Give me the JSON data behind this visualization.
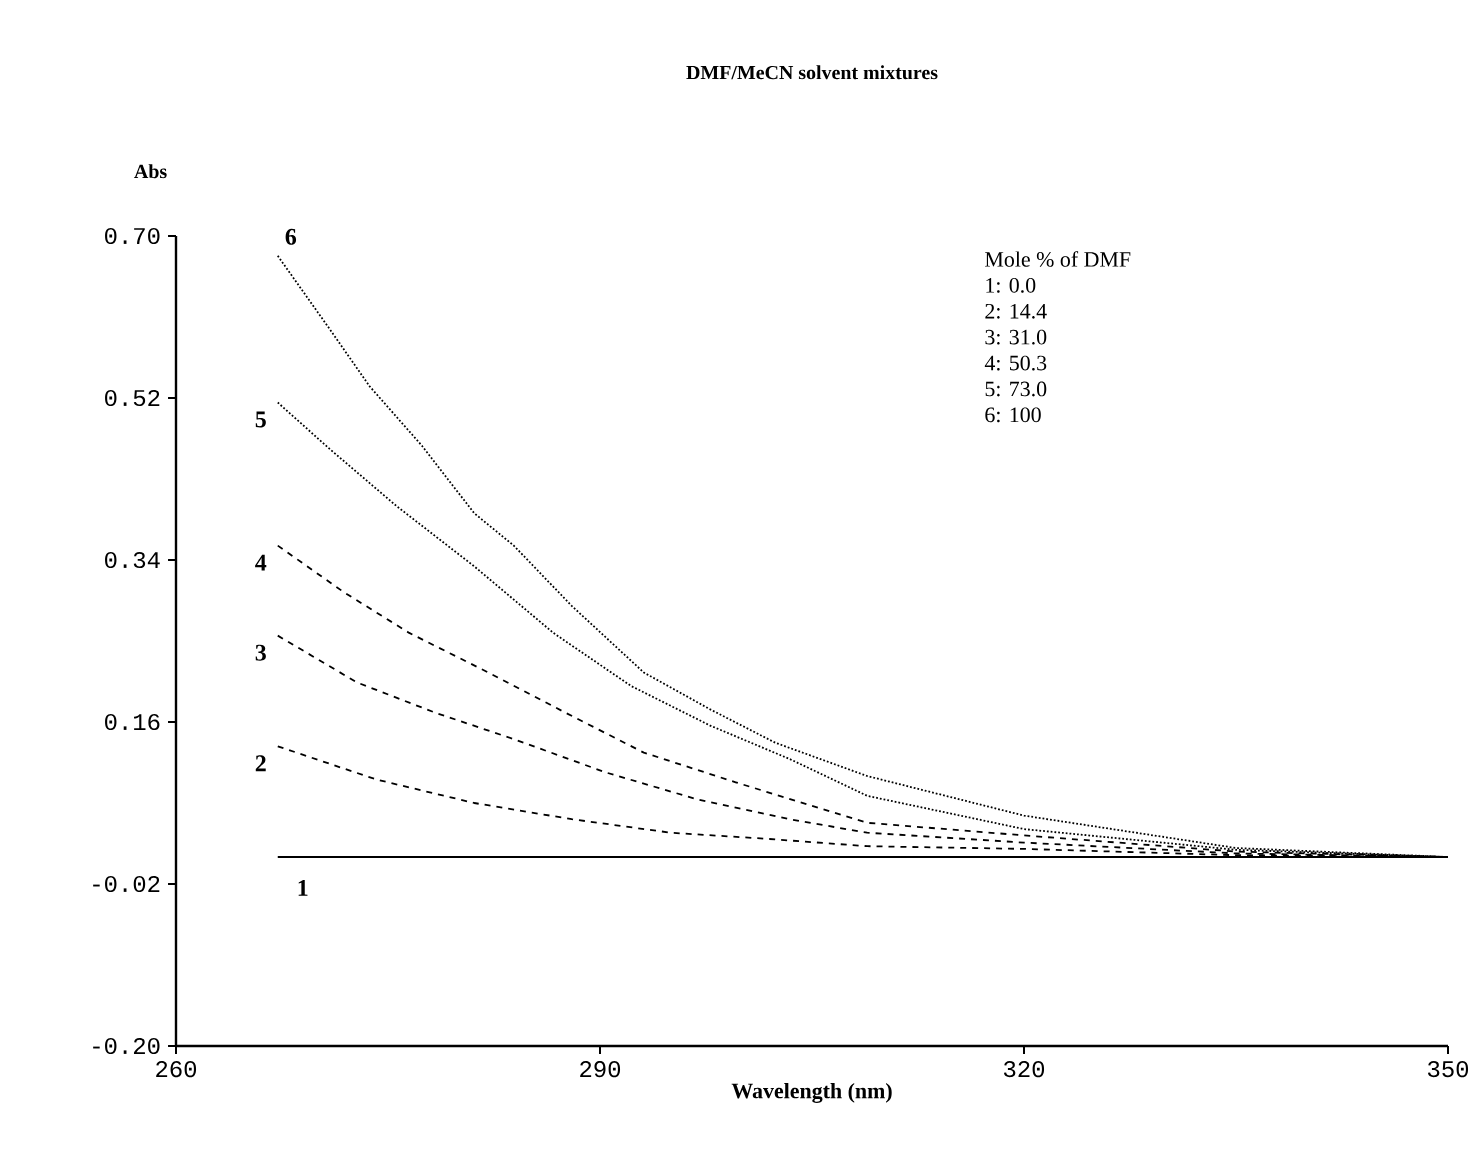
{
  "chart_data": {
    "type": "line",
    "title": "DMF/MeCN solvent mixtures",
    "xlabel": "Wavelength (nm)",
    "ylabel": "Abs",
    "xlim": [
      260,
      350
    ],
    "xticks": [
      260,
      290,
      320,
      350
    ],
    "ylim": [
      -0.2,
      0.7
    ],
    "yticks": [
      {
        "value": -0.2,
        "label": "-0.20"
      },
      {
        "value": -0.02,
        "label": "-0.02"
      },
      {
        "value": 0.16,
        "label": "0.16"
      },
      {
        "value": 0.34,
        "label": "0.34"
      },
      {
        "value": 0.52,
        "label": "0.52"
      },
      {
        "value": 0.7,
        "label": "0.70"
      }
    ],
    "grid": false,
    "annotations": [
      "Mole % of DMF",
      "1: 0.0",
      "2: 14.4",
      "3: 31.0",
      "4: 50.3",
      "5: 73.0",
      "6: 100"
    ],
    "series": [
      {
        "name": "1",
        "color": "#000000",
        "line_style": "solid",
        "x": [
          267.2,
          290,
          320,
          350
        ],
        "values": [
          0.01,
          0.01,
          0.01,
          0.01
        ]
      },
      {
        "name": "2",
        "color": "#000000",
        "line_style": "dashed",
        "x": [
          267.2,
          274.2,
          281.1,
          288.0,
          295.0,
          302.0,
          308.9,
          320,
          335,
          350
        ],
        "values": [
          0.133,
          0.096,
          0.07,
          0.052,
          0.037,
          0.03,
          0.022,
          0.019,
          0.012,
          0.01
        ]
      },
      {
        "name": "3",
        "color": "#000000",
        "line_style": "dashed",
        "x": [
          267.2,
          272.8,
          278.4,
          283.9,
          290.4,
          296.9,
          303.4,
          308.9,
          320,
          335,
          350
        ],
        "values": [
          0.256,
          0.204,
          0.17,
          0.141,
          0.104,
          0.074,
          0.052,
          0.037,
          0.026,
          0.014,
          0.01
        ]
      },
      {
        "name": "4",
        "color": "#000000",
        "line_style": "dashed",
        "x": [
          267.2,
          271.9,
          276.5,
          282.1,
          287.6,
          293.1,
          299.6,
          308.9,
          320,
          335,
          350
        ],
        "values": [
          0.356,
          0.304,
          0.259,
          0.215,
          0.17,
          0.126,
          0.093,
          0.048,
          0.034,
          0.016,
          0.01
        ]
      },
      {
        "name": "5",
        "color": "#000000",
        "line_style": "dotted",
        "x": [
          267.2,
          270.9,
          275.6,
          281.1,
          286.7,
          292.2,
          297.8,
          303.4,
          308.9,
          320,
          335,
          350
        ],
        "values": [
          0.515,
          0.463,
          0.4,
          0.333,
          0.259,
          0.2,
          0.156,
          0.119,
          0.078,
          0.041,
          0.018,
          0.01
        ]
      },
      {
        "name": "6",
        "color": "#000000",
        "line_style": "dotted",
        "x": [
          267.2,
          270.9,
          273.7,
          277.4,
          281.1,
          283.9,
          288.0,
          293.1,
          297.8,
          302.4,
          308.9,
          320,
          335,
          350
        ],
        "values": [
          0.678,
          0.596,
          0.533,
          0.467,
          0.392,
          0.356,
          0.289,
          0.215,
          0.174,
          0.137,
          0.1,
          0.056,
          0.02,
          0.01
        ]
      }
    ]
  }
}
